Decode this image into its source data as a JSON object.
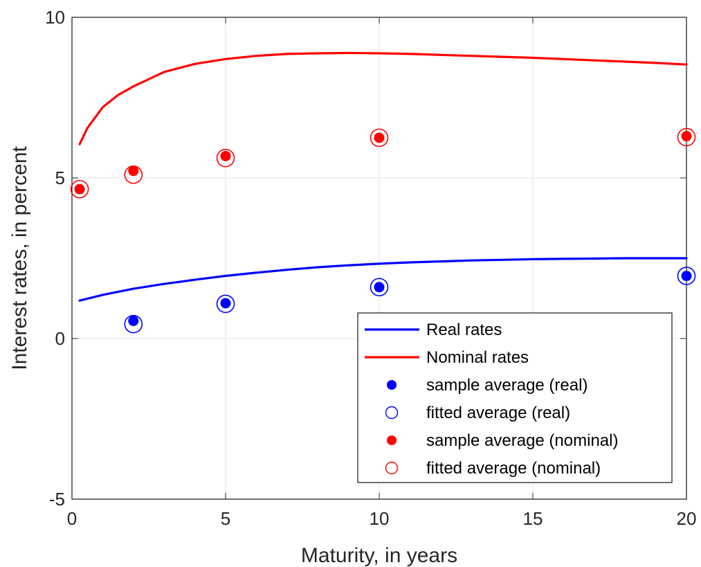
{
  "chart_data": {
    "type": "line",
    "xlabel": "Maturity, in years",
    "ylabel": "Interest rates, in percent",
    "xlim": [
      0,
      20
    ],
    "ylim": [
      -5,
      10
    ],
    "xticks": [
      "0",
      "5",
      "10",
      "15",
      "20"
    ],
    "yticks": [
      "-5",
      "0",
      "5",
      "10"
    ],
    "grid": true,
    "legend_position": "bottom-right",
    "series": [
      {
        "name": "Real rates",
        "kind": "line",
        "color": "#0000ff",
        "x": [
          0.25,
          1,
          2,
          3,
          4,
          5,
          6,
          7,
          8,
          9,
          10,
          11,
          12,
          13,
          14,
          15,
          16,
          17,
          18,
          19,
          20
        ],
        "y": [
          1.18,
          1.36,
          1.55,
          1.7,
          1.83,
          1.95,
          2.05,
          2.14,
          2.22,
          2.28,
          2.33,
          2.37,
          2.4,
          2.43,
          2.45,
          2.47,
          2.48,
          2.49,
          2.5,
          2.5,
          2.5
        ]
      },
      {
        "name": "Nominal rates",
        "kind": "line",
        "color": "#ff0000",
        "x": [
          0.25,
          0.5,
          1,
          1.5,
          2,
          3,
          4,
          5,
          6,
          7,
          8,
          9,
          10,
          11,
          12,
          13,
          14,
          15,
          16,
          17,
          18,
          19,
          20
        ],
        "y": [
          6.05,
          6.55,
          7.2,
          7.58,
          7.85,
          8.3,
          8.55,
          8.7,
          8.8,
          8.86,
          8.88,
          8.89,
          8.88,
          8.86,
          8.83,
          8.8,
          8.77,
          8.74,
          8.7,
          8.66,
          8.62,
          8.58,
          8.53
        ]
      },
      {
        "name": "sample average (real)",
        "kind": "filled-marker",
        "color": "#0000ff",
        "x": [
          2,
          5,
          10,
          20
        ],
        "y": [
          0.55,
          1.1,
          1.6,
          1.95
        ]
      },
      {
        "name": "fitted average (real)",
        "kind": "open-marker",
        "color": "#0000ff",
        "x": [
          2,
          5,
          10,
          20
        ],
        "y": [
          0.45,
          1.08,
          1.6,
          1.95
        ]
      },
      {
        "name": "sample average (nominal)",
        "kind": "filled-marker",
        "color": "#ff0000",
        "x": [
          0.25,
          2,
          5,
          10,
          20
        ],
        "y": [
          4.65,
          5.22,
          5.68,
          6.25,
          6.3
        ]
      },
      {
        "name": "fitted average (nominal)",
        "kind": "open-marker",
        "color": "#ff0000",
        "x": [
          0.25,
          2,
          5,
          10,
          20
        ],
        "y": [
          4.65,
          5.1,
          5.62,
          6.25,
          6.27
        ]
      }
    ]
  }
}
